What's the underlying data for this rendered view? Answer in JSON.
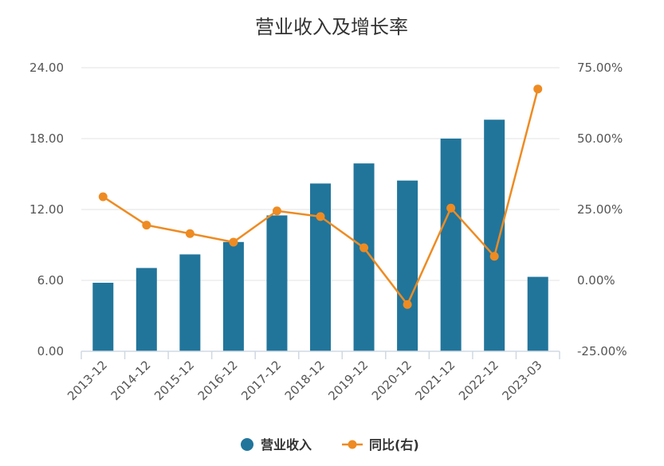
{
  "chart_data": {
    "type": "bar",
    "title": "营业收入及增长率",
    "categories": [
      "2013-12",
      "2014-12",
      "2015-12",
      "2016-12",
      "2017-12",
      "2018-12",
      "2019-12",
      "2020-12",
      "2021-12",
      "2022-12",
      "2023-03"
    ],
    "y_left_ticks": [
      "0.00",
      "6.00",
      "12.00",
      "18.00",
      "24.00"
    ],
    "y_right_ticks": [
      "-25.00%",
      "0.00%",
      "25.00%",
      "50.00%",
      "75.00%"
    ],
    "ylim_left": [
      0,
      24
    ],
    "ylim_right": [
      -25,
      75
    ],
    "grid": true,
    "legend_position": "bottom",
    "series": [
      {
        "name": "营业收入",
        "type": "bar",
        "axis": "left",
        "color": "#21759b",
        "values": [
          5.8,
          7.05,
          8.2,
          9.25,
          11.5,
          14.2,
          15.9,
          14.45,
          18.0,
          19.6,
          6.3
        ]
      },
      {
        "name": "同比(右)",
        "type": "line",
        "axis": "right",
        "color": "#ee8b22",
        "values": [
          29.5,
          19.5,
          16.5,
          13.5,
          24.5,
          22.5,
          11.5,
          -8.5,
          25.5,
          8.5,
          67.5
        ]
      }
    ]
  }
}
